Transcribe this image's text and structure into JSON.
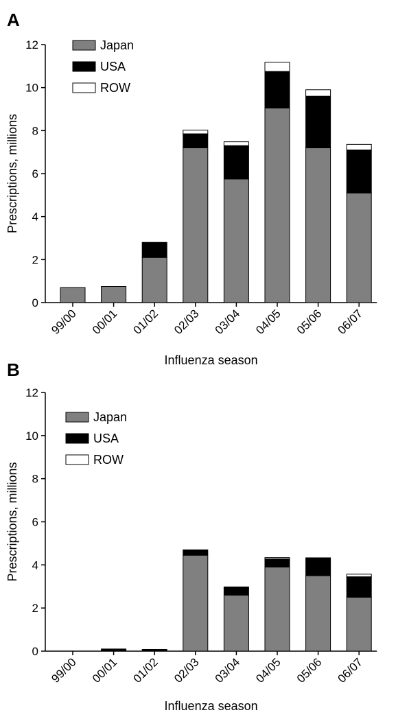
{
  "colors": {
    "Japan": "#808080",
    "USA": "#000000",
    "ROW": "#ffffff"
  },
  "chart_data": [
    {
      "type": "bar",
      "stacked": true,
      "panel_label": "A",
      "categories": [
        "99/00",
        "00/01",
        "01/02",
        "02/03",
        "03/04",
        "04/05",
        "05/06",
        "06/07"
      ],
      "series": [
        {
          "name": "Japan",
          "values": [
            0.7,
            0.75,
            2.1,
            7.2,
            5.75,
            9.05,
            7.2,
            5.1
          ]
        },
        {
          "name": "USA",
          "values": [
            0,
            0,
            0.7,
            0.65,
            1.55,
            1.7,
            2.4,
            2.0
          ]
        },
        {
          "name": "ROW",
          "values": [
            0,
            0,
            0,
            0.17,
            0.18,
            0.43,
            0.3,
            0.26
          ]
        }
      ],
      "xlabel": "Influenza season",
      "ylabel": "Prescriptions, millions",
      "ylim": [
        0,
        12
      ],
      "yticks": [
        0,
        2,
        4,
        6,
        8,
        10,
        12
      ],
      "legend": "top-left",
      "grid": false
    },
    {
      "type": "bar",
      "stacked": true,
      "panel_label": "B",
      "categories": [
        "99/00",
        "00/01",
        "01/02",
        "02/03",
        "03/04",
        "04/05",
        "05/06",
        "06/07"
      ],
      "series": [
        {
          "name": "Japan",
          "values": [
            0,
            0,
            0,
            4.45,
            2.6,
            3.9,
            3.5,
            2.5
          ]
        },
        {
          "name": "USA",
          "values": [
            0,
            0.1,
            0.08,
            0.25,
            0.38,
            0.38,
            0.83,
            0.95
          ]
        },
        {
          "name": "ROW",
          "values": [
            0,
            0,
            0,
            0,
            0,
            0.06,
            0,
            0.12
          ]
        }
      ],
      "xlabel": "Influenza season",
      "ylabel": "Prescriptions, millions",
      "ylim": [
        0,
        12
      ],
      "yticks": [
        0,
        2,
        4,
        6,
        8,
        10,
        12
      ],
      "legend": "top-left",
      "grid": false
    }
  ]
}
